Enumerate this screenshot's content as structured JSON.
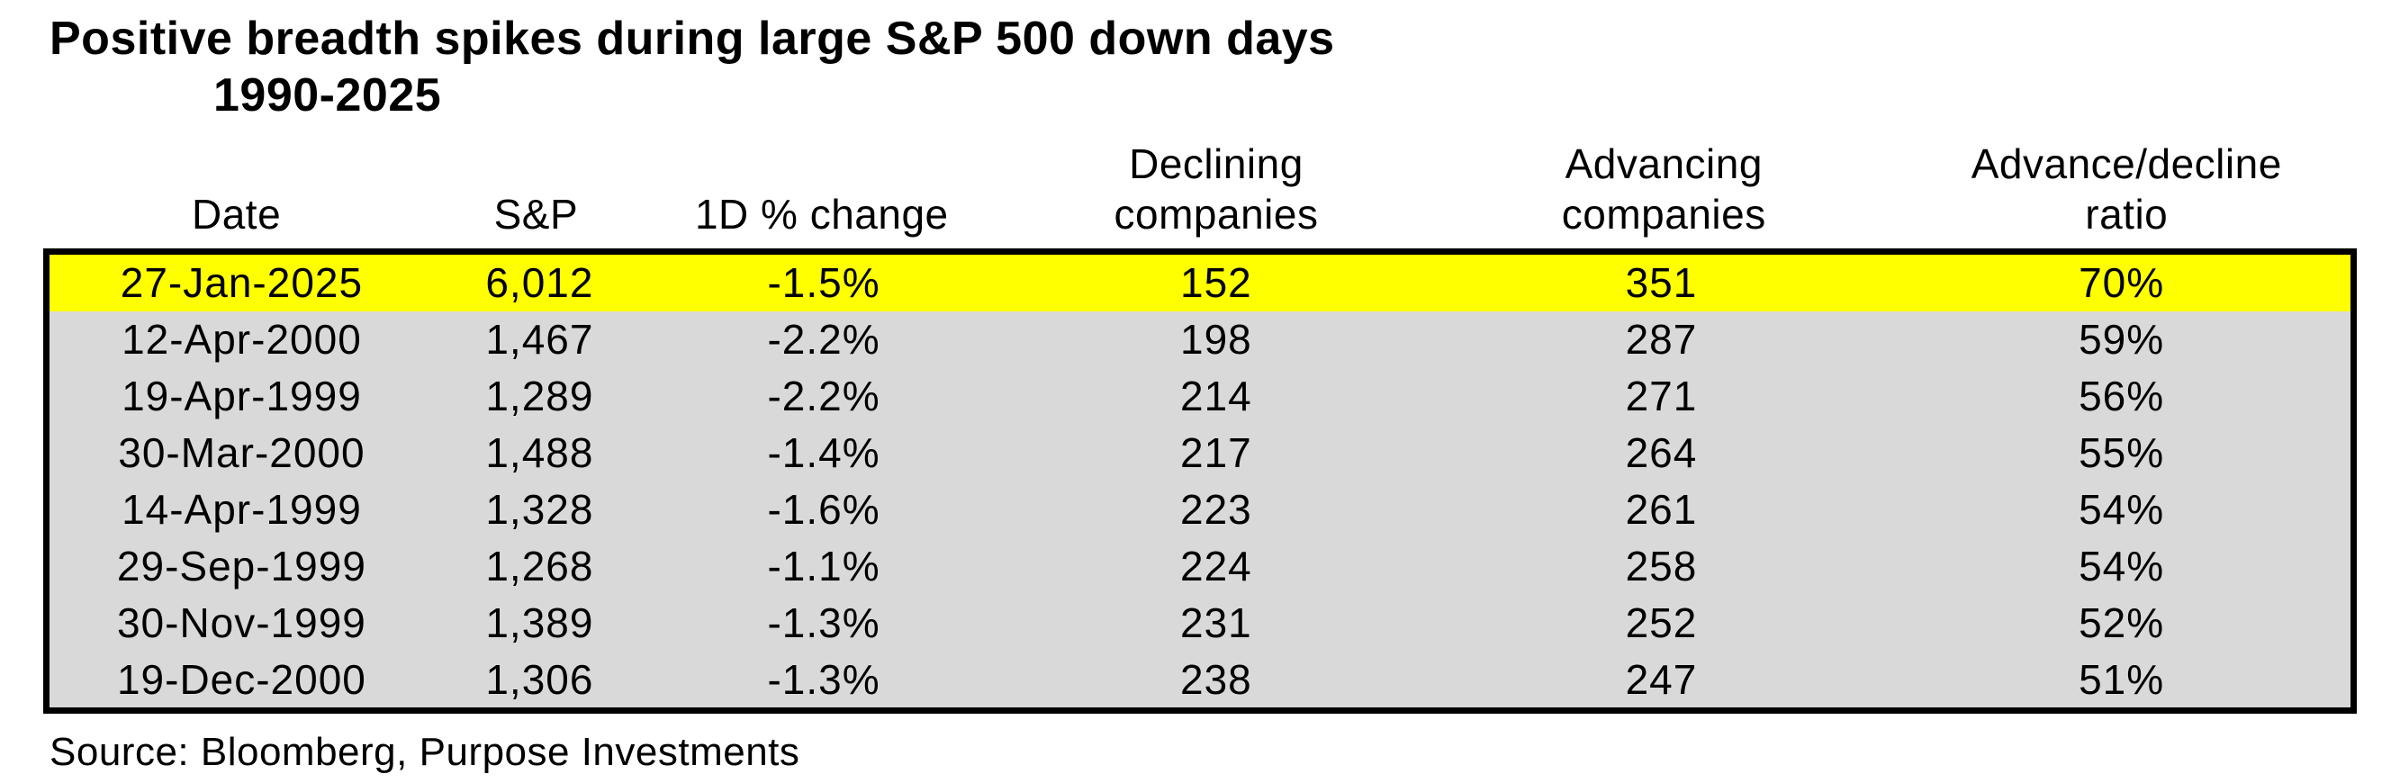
{
  "colors": {
    "highlight_yellow": "#ffff00",
    "row_gray": "#d9d9d9",
    "border_black": "#000000",
    "background": "#ffffff",
    "text": "#000000"
  },
  "chart_data": {
    "type": "table",
    "title": "Positive breadth spikes during large S&P 500 down days",
    "subtitle": "1990-2025",
    "columns": [
      {
        "id": "date",
        "label_top": "",
        "label_bottom": "Date"
      },
      {
        "id": "sp",
        "label_top": "",
        "label_bottom": "S&P"
      },
      {
        "id": "change",
        "label_top": "",
        "label_bottom": "1D % change"
      },
      {
        "id": "declining",
        "label_top": "Declining",
        "label_bottom": "companies"
      },
      {
        "id": "advancing",
        "label_top": "Advancing",
        "label_bottom": "companies"
      },
      {
        "id": "ratio",
        "label_top": "Advance/decline",
        "label_bottom": "ratio"
      }
    ],
    "rows": [
      {
        "date": "27-Jan-2025",
        "sp": "6,012",
        "change": "-1.5%",
        "declining": "152",
        "advancing": "351",
        "ratio": "70%",
        "highlight": true
      },
      {
        "date": "12-Apr-2000",
        "sp": "1,467",
        "change": "-2.2%",
        "declining": "198",
        "advancing": "287",
        "ratio": "59%",
        "highlight": false
      },
      {
        "date": "19-Apr-1999",
        "sp": "1,289",
        "change": "-2.2%",
        "declining": "214",
        "advancing": "271",
        "ratio": "56%",
        "highlight": false
      },
      {
        "date": "30-Mar-2000",
        "sp": "1,488",
        "change": "-1.4%",
        "declining": "217",
        "advancing": "264",
        "ratio": "55%",
        "highlight": false
      },
      {
        "date": "14-Apr-1999",
        "sp": "1,328",
        "change": "-1.6%",
        "declining": "223",
        "advancing": "261",
        "ratio": "54%",
        "highlight": false
      },
      {
        "date": "29-Sep-1999",
        "sp": "1,268",
        "change": "-1.1%",
        "declining": "224",
        "advancing": "258",
        "ratio": "54%",
        "highlight": false
      },
      {
        "date": "30-Nov-1999",
        "sp": "1,389",
        "change": "-1.3%",
        "declining": "231",
        "advancing": "252",
        "ratio": "52%",
        "highlight": false
      },
      {
        "date": "19-Dec-2000",
        "sp": "1,306",
        "change": "-1.3%",
        "declining": "238",
        "advancing": "247",
        "ratio": "51%",
        "highlight": false
      }
    ],
    "source": "Source: Bloomberg, Purpose Investments"
  }
}
